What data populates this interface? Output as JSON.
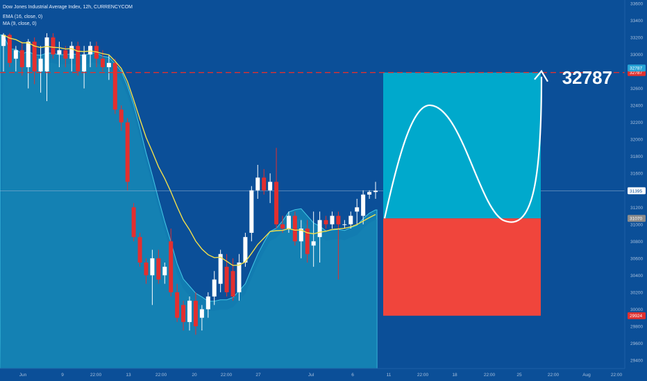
{
  "header": {
    "title": "Dow Jones Industrial Average Index, 12h, CURRENCYCOM",
    "ema_label": "EMA (16, close, 0)",
    "ma_label": "MA (9, close, 0)"
  },
  "target_text": "32787",
  "colors": {
    "background": "#0b4f98",
    "up_candle": "#ffffff",
    "down_candle": "#e32f2f",
    "ema_line": "#f3e04a",
    "ma_area": "#1aa2c7",
    "target_box": "#00a9cc",
    "stop_box": "#f0453c",
    "target_line": "#e0312f"
  },
  "price_tags": [
    {
      "label": "32787",
      "value": 32787,
      "color": "#e0312f"
    },
    {
      "label": "32787",
      "value": 32840,
      "color": "#26a3d6"
    },
    {
      "label": "31395",
      "value": 31395,
      "color": "#ffffff"
    },
    {
      "label": "31070",
      "value": 31070,
      "color": "#8c8c8c"
    },
    {
      "label": "29924",
      "value": 29924,
      "color": "#e0312f"
    }
  ],
  "chart_data": {
    "type": "candlestick",
    "title": "Dow Jones Industrial Average Index, 12h, CURRENCYCOM",
    "ylim": [
      29400,
      33600
    ],
    "y_ticks": [
      29400,
      29600,
      29800,
      30000,
      30200,
      30400,
      30600,
      30800,
      31000,
      31200,
      31400,
      31600,
      31800,
      32000,
      32200,
      32400,
      32600,
      32800,
      33000,
      33200,
      33400,
      33600
    ],
    "x_tick_labels": [
      "Jun",
      "9",
      "22:00",
      "13",
      "22:00",
      "20",
      "22:00",
      "27",
      "Jul",
      "6",
      "11",
      "22:00",
      "18",
      "22:00",
      "25",
      "22:00",
      "Aug",
      "22:00"
    ],
    "candles": [
      {
        "o": 33100,
        "h": 33250,
        "l": 32800,
        "c": 33230
      },
      {
        "o": 33230,
        "h": 33250,
        "l": 32850,
        "c": 32900
      },
      {
        "o": 32950,
        "h": 33100,
        "l": 32800,
        "c": 33050
      },
      {
        "o": 33050,
        "h": 33150,
        "l": 32750,
        "c": 32850
      },
      {
        "o": 32850,
        "h": 33180,
        "l": 32600,
        "c": 33150
      },
      {
        "o": 33150,
        "h": 33200,
        "l": 32650,
        "c": 32800
      },
      {
        "o": 32800,
        "h": 33100,
        "l": 32550,
        "c": 32950
      },
      {
        "o": 32800,
        "h": 33250,
        "l": 32450,
        "c": 33200
      },
      {
        "o": 33200,
        "h": 33250,
        "l": 32950,
        "c": 33000
      },
      {
        "o": 33000,
        "h": 33150,
        "l": 32850,
        "c": 33050
      },
      {
        "o": 33050,
        "h": 33100,
        "l": 32850,
        "c": 32950
      },
      {
        "o": 32950,
        "h": 33150,
        "l": 32800,
        "c": 33100
      },
      {
        "o": 33100,
        "h": 33150,
        "l": 32750,
        "c": 32800
      },
      {
        "o": 32800,
        "h": 33100,
        "l": 32600,
        "c": 33000
      },
      {
        "o": 33000,
        "h": 33150,
        "l": 32850,
        "c": 33100
      },
      {
        "o": 33100,
        "h": 33150,
        "l": 32850,
        "c": 32950
      },
      {
        "o": 32950,
        "h": 33050,
        "l": 32800,
        "c": 32850
      },
      {
        "o": 32850,
        "h": 33000,
        "l": 32700,
        "c": 32900
      },
      {
        "o": 32900,
        "h": 32950,
        "l": 32300,
        "c": 32350
      },
      {
        "o": 32350,
        "h": 32400,
        "l": 32100,
        "c": 32200
      },
      {
        "o": 32200,
        "h": 32250,
        "l": 31400,
        "c": 31500
      },
      {
        "o": 31200,
        "h": 31250,
        "l": 30800,
        "c": 30850
      },
      {
        "o": 30850,
        "h": 30900,
        "l": 30500,
        "c": 30550
      },
      {
        "o": 30550,
        "h": 30600,
        "l": 30300,
        "c": 30400
      },
      {
        "o": 30400,
        "h": 30700,
        "l": 30050,
        "c": 30600
      },
      {
        "o": 30600,
        "h": 30700,
        "l": 30300,
        "c": 30350
      },
      {
        "o": 30400,
        "h": 30550,
        "l": 30300,
        "c": 30500
      },
      {
        "o": 30800,
        "h": 30950,
        "l": 30150,
        "c": 30200
      },
      {
        "o": 30200,
        "h": 30300,
        "l": 29850,
        "c": 29900
      },
      {
        "o": 30050,
        "h": 30100,
        "l": 29750,
        "c": 29850
      },
      {
        "o": 29850,
        "h": 30150,
        "l": 29750,
        "c": 30100
      },
      {
        "o": 30100,
        "h": 30200,
        "l": 29700,
        "c": 29800
      },
      {
        "o": 29900,
        "h": 30050,
        "l": 29750,
        "c": 30000
      },
      {
        "o": 30000,
        "h": 30200,
        "l": 29900,
        "c": 30150
      },
      {
        "o": 30150,
        "h": 30450,
        "l": 30050,
        "c": 30350
      },
      {
        "o": 30300,
        "h": 30700,
        "l": 30200,
        "c": 30650
      },
      {
        "o": 30500,
        "h": 30650,
        "l": 30150,
        "c": 30200
      },
      {
        "o": 30450,
        "h": 30600,
        "l": 30100,
        "c": 30150
      },
      {
        "o": 30200,
        "h": 30650,
        "l": 30100,
        "c": 30550
      },
      {
        "o": 30550,
        "h": 30900,
        "l": 30500,
        "c": 30850
      },
      {
        "o": 30900,
        "h": 31450,
        "l": 30800,
        "c": 31400
      },
      {
        "o": 31400,
        "h": 31700,
        "l": 31300,
        "c": 31550
      },
      {
        "o": 31550,
        "h": 31650,
        "l": 31350,
        "c": 31400
      },
      {
        "o": 31400,
        "h": 31600,
        "l": 31250,
        "c": 31500
      },
      {
        "o": 31500,
        "h": 31900,
        "l": 30950,
        "c": 31000
      },
      {
        "o": 31000,
        "h": 31100,
        "l": 30900,
        "c": 30950
      },
      {
        "o": 30950,
        "h": 31150,
        "l": 30900,
        "c": 31100
      },
      {
        "o": 31100,
        "h": 31150,
        "l": 30750,
        "c": 30800
      },
      {
        "o": 30800,
        "h": 31050,
        "l": 30600,
        "c": 30950
      },
      {
        "o": 30950,
        "h": 31050,
        "l": 30550,
        "c": 30650
      },
      {
        "o": 30750,
        "h": 31150,
        "l": 30500,
        "c": 30800
      },
      {
        "o": 30850,
        "h": 31150,
        "l": 30550,
        "c": 31050
      },
      {
        "o": 31050,
        "h": 31100,
        "l": 30950,
        "c": 31000
      },
      {
        "o": 31000,
        "h": 31150,
        "l": 30950,
        "c": 31100
      },
      {
        "o": 31100,
        "h": 31150,
        "l": 30350,
        "c": 31000
      },
      {
        "o": 31000,
        "h": 31050,
        "l": 30950,
        "c": 31000
      },
      {
        "o": 31000,
        "h": 31150,
        "l": 30950,
        "c": 31100
      },
      {
        "o": 31150,
        "h": 31300,
        "l": 31000,
        "c": 31200
      },
      {
        "o": 31100,
        "h": 31400,
        "l": 31000,
        "c": 31350
      },
      {
        "o": 31350,
        "h": 31400,
        "l": 31300,
        "c": 31380
      },
      {
        "o": 31380,
        "h": 31500,
        "l": 31300,
        "c": 31395
      }
    ],
    "projection": {
      "target": 32787,
      "entry": 31070,
      "stop": 29924
    }
  }
}
